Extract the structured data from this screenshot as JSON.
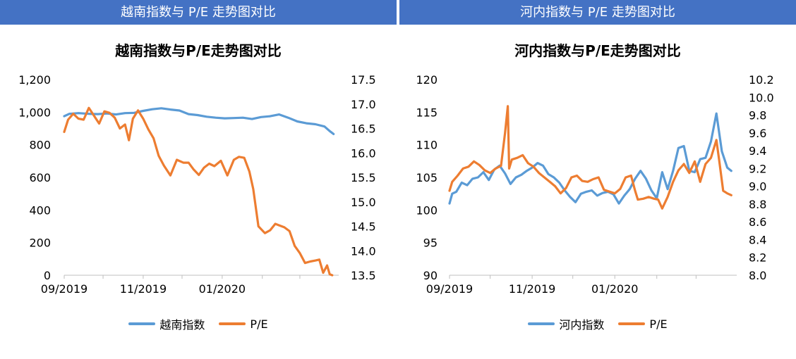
{
  "banners": {
    "left": "越南指数与 P/E 走势图对比",
    "right": "河内指数与 P/E 走势图对比"
  },
  "colors": {
    "index": "#5b9bd5",
    "pe": "#ed7d31"
  },
  "chart_data": [
    {
      "type": "line",
      "title": "越南指数与P/E走势图对比",
      "x_ticks": [
        "09/2019",
        "11/2019",
        "01/2020"
      ],
      "xlim": [
        "2019-09-01",
        "2020-03-31"
      ],
      "y_left": {
        "ylim": [
          0,
          1200
        ],
        "ticks": [
          "0",
          "200",
          "400",
          "600",
          "800",
          "1,000",
          "1,200"
        ]
      },
      "y_right": {
        "ylim": [
          13.5,
          17.5
        ],
        "ticks": [
          "13.5",
          "14.0",
          "14.5",
          "15.0",
          "15.5",
          "16.0",
          "16.5",
          "17.0",
          "17.5"
        ]
      },
      "legend": "bottom",
      "series": [
        {
          "name": "越南指数",
          "axis": "left",
          "x": [
            "2019-09-01",
            "2019-09-05",
            "2019-09-12",
            "2019-09-20",
            "2019-09-27",
            "2019-10-04",
            "2019-10-11",
            "2019-10-18",
            "2019-10-25",
            "2019-11-01",
            "2019-11-08",
            "2019-11-15",
            "2019-11-22",
            "2019-11-29",
            "2019-12-06",
            "2019-12-13",
            "2019-12-20",
            "2019-12-27",
            "2020-01-03",
            "2020-01-10",
            "2020-01-17",
            "2020-01-24",
            "2020-01-31",
            "2020-02-07",
            "2020-02-14",
            "2020-02-21",
            "2020-02-28",
            "2020-03-06",
            "2020-03-13",
            "2020-03-20",
            "2020-03-24",
            "2020-03-27"
          ],
          "values": [
            975,
            990,
            994,
            990,
            988,
            992,
            986,
            994,
            996,
            1008,
            1018,
            1024,
            1016,
            1010,
            988,
            982,
            972,
            966,
            962,
            964,
            966,
            958,
            970,
            975,
            986,
            966,
            943,
            932,
            926,
            912,
            884,
            866
          ]
        },
        {
          "name": "P/E",
          "axis": "right",
          "x": [
            "2019-09-01",
            "2019-09-04",
            "2019-09-08",
            "2019-09-12",
            "2019-09-16",
            "2019-09-20",
            "2019-09-24",
            "2019-09-28",
            "2019-10-02",
            "2019-10-06",
            "2019-10-10",
            "2019-10-14",
            "2019-10-18",
            "2019-10-21",
            "2019-10-24",
            "2019-10-28",
            "2019-11-01",
            "2019-11-05",
            "2019-11-09",
            "2019-11-13",
            "2019-11-17",
            "2019-11-22",
            "2019-11-27",
            "2019-12-02",
            "2019-12-06",
            "2019-12-10",
            "2019-12-14",
            "2019-12-18",
            "2019-12-22",
            "2019-12-26",
            "2019-12-31",
            "2020-01-05",
            "2020-01-10",
            "2020-01-14",
            "2020-01-18",
            "2020-01-22",
            "2020-01-25",
            "2020-01-29",
            "2020-02-03",
            "2020-02-07",
            "2020-02-11",
            "2020-02-14",
            "2020-02-18",
            "2020-02-22",
            "2020-02-26",
            "2020-03-01",
            "2020-03-05",
            "2020-03-09",
            "2020-03-13",
            "2020-03-16",
            "2020-03-19",
            "2020-03-22",
            "2020-03-24",
            "2020-03-26"
          ],
          "values": [
            16.43,
            16.68,
            16.8,
            16.7,
            16.68,
            16.92,
            16.76,
            16.6,
            16.85,
            16.82,
            16.72,
            16.5,
            16.58,
            16.26,
            16.7,
            16.87,
            16.7,
            16.48,
            16.3,
            15.94,
            15.74,
            15.54,
            15.86,
            15.8,
            15.8,
            15.66,
            15.55,
            15.7,
            15.78,
            15.73,
            15.84,
            15.54,
            15.86,
            15.92,
            15.9,
            15.62,
            15.26,
            14.5,
            14.36,
            14.42,
            14.55,
            14.52,
            14.48,
            14.4,
            14.1,
            13.95,
            13.75,
            13.78,
            13.8,
            13.82,
            13.55,
            13.7,
            13.52,
            13.5
          ]
        }
      ]
    },
    {
      "type": "line",
      "title": "河内指数与P/E走势图对比",
      "x_ticks": [
        "09/2019",
        "11/2019",
        "01/2020"
      ],
      "xlim": [
        "2019-09-01",
        "2020-03-31"
      ],
      "y_left": {
        "ylim": [
          90,
          120
        ],
        "ticks": [
          "90",
          "95",
          "100",
          "105",
          "110",
          "115",
          "120"
        ]
      },
      "y_right": {
        "ylim": [
          8.0,
          10.2
        ],
        "ticks": [
          "8.0",
          "8.2",
          "8.4",
          "8.6",
          "8.8",
          "9.0",
          "9.2",
          "9.4",
          "9.6",
          "9.8",
          "10.0",
          "10.2"
        ]
      },
      "legend": "bottom",
      "series": [
        {
          "name": "河内指数",
          "axis": "left",
          "x": [
            "2019-09-01",
            "2019-09-03",
            "2019-09-06",
            "2019-09-10",
            "2019-09-14",
            "2019-09-18",
            "2019-09-22",
            "2019-09-26",
            "2019-09-30",
            "2019-10-04",
            "2019-10-08",
            "2019-10-12",
            "2019-10-16",
            "2019-10-20",
            "2019-10-24",
            "2019-10-28",
            "2019-11-01",
            "2019-11-05",
            "2019-11-09",
            "2019-11-13",
            "2019-11-17",
            "2019-11-21",
            "2019-11-25",
            "2019-11-29",
            "2019-12-03",
            "2019-12-07",
            "2019-12-11",
            "2019-12-15",
            "2019-12-19",
            "2019-12-23",
            "2019-12-27",
            "2019-12-31",
            "2020-01-04",
            "2020-01-08",
            "2020-01-12",
            "2020-01-16",
            "2020-01-20",
            "2020-01-24",
            "2020-01-28",
            "2020-02-01",
            "2020-02-05",
            "2020-02-09",
            "2020-02-13",
            "2020-02-17",
            "2020-02-21",
            "2020-02-25",
            "2020-02-29",
            "2020-03-04",
            "2020-03-08",
            "2020-03-12",
            "2020-03-16",
            "2020-03-20",
            "2020-03-24",
            "2020-03-27"
          ],
          "values": [
            101.0,
            102.5,
            102.8,
            104.2,
            103.8,
            104.8,
            105.0,
            105.8,
            104.6,
            106.2,
            106.8,
            105.6,
            104.0,
            105.0,
            105.4,
            106.0,
            106.5,
            107.2,
            106.8,
            105.5,
            105.0,
            104.2,
            103.0,
            102.0,
            101.2,
            102.5,
            102.8,
            103.0,
            102.2,
            102.6,
            102.8,
            102.4,
            101.0,
            102.2,
            103.2,
            104.8,
            106.0,
            104.8,
            103.0,
            101.8,
            105.8,
            103.2,
            106.0,
            109.5,
            109.8,
            106.0,
            105.8,
            107.8,
            108.0,
            110.5,
            114.8,
            109.0,
            106.5,
            106.0
          ]
        },
        {
          "name": "P/E",
          "axis": "right",
          "x": [
            "2019-09-01",
            "2019-09-03",
            "2019-09-07",
            "2019-09-11",
            "2019-09-15",
            "2019-09-19",
            "2019-09-23",
            "2019-09-27",
            "2019-10-01",
            "2019-10-05",
            "2019-10-09",
            "2019-10-12",
            "2019-10-14",
            "2019-10-15",
            "2019-10-17",
            "2019-10-21",
            "2019-10-25",
            "2019-10-29",
            "2019-11-02",
            "2019-11-06",
            "2019-11-10",
            "2019-11-14",
            "2019-11-18",
            "2019-11-22",
            "2019-11-26",
            "2019-11-30",
            "2019-12-04",
            "2019-12-08",
            "2019-12-12",
            "2019-12-16",
            "2019-12-20",
            "2019-12-24",
            "2019-12-28",
            "2020-01-01",
            "2020-01-05",
            "2020-01-09",
            "2020-01-13",
            "2020-01-16",
            "2020-01-18",
            "2020-01-22",
            "2020-01-26",
            "2020-01-30",
            "2020-02-02",
            "2020-02-05",
            "2020-02-09",
            "2020-02-13",
            "2020-02-17",
            "2020-02-21",
            "2020-02-25",
            "2020-02-29",
            "2020-03-04",
            "2020-03-08",
            "2020-03-12",
            "2020-03-16",
            "2020-03-18",
            "2020-03-21",
            "2020-03-24",
            "2020-03-27"
          ],
          "values": [
            8.95,
            9.05,
            9.12,
            9.2,
            9.22,
            9.28,
            9.24,
            9.18,
            9.15,
            9.2,
            9.23,
            9.6,
            9.9,
            9.2,
            9.3,
            9.32,
            9.35,
            9.26,
            9.22,
            9.15,
            9.1,
            9.05,
            9.0,
            8.92,
            8.98,
            9.1,
            9.12,
            9.06,
            9.05,
            9.08,
            9.1,
            8.96,
            8.94,
            8.92,
            8.97,
            9.1,
            9.12,
            8.95,
            8.85,
            8.86,
            8.88,
            8.86,
            8.85,
            8.75,
            8.88,
            9.05,
            9.18,
            9.25,
            9.15,
            9.28,
            9.05,
            9.25,
            9.32,
            9.52,
            9.3,
            8.95,
            8.92,
            8.9
          ]
        }
      ]
    }
  ]
}
